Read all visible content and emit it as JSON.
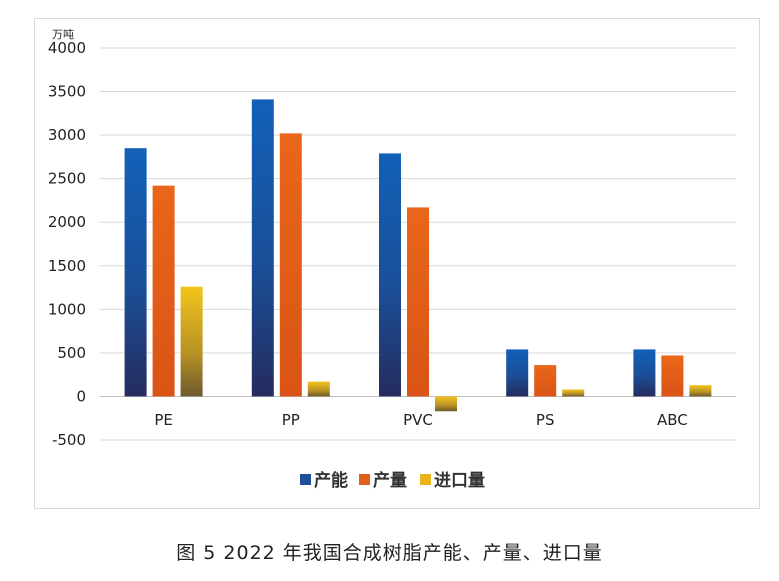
{
  "caption": "图 5 2022 年我国合成树脂产能、产量、进口量",
  "chart_data": {
    "type": "bar",
    "unit": "万吨",
    "categories": [
      "PE",
      "PP",
      "PVC",
      "PS",
      "ABC"
    ],
    "series": [
      {
        "name": "产能",
        "values": [
          2850,
          3410,
          2790,
          540,
          540
        ],
        "color": "#1f4e9a"
      },
      {
        "name": "产量",
        "values": [
          2420,
          3020,
          2170,
          360,
          470
        ],
        "color": "#e0601b"
      },
      {
        "name": "进口量",
        "values": [
          1260,
          170,
          -170,
          80,
          130
        ],
        "color": "#e7b419"
      }
    ],
    "yticks": [
      -500,
      0,
      500,
      1000,
      1500,
      2000,
      2500,
      3000,
      3500,
      4000
    ],
    "ylim": [
      -500,
      4000
    ],
    "grid": true,
    "legend": "bottom"
  }
}
